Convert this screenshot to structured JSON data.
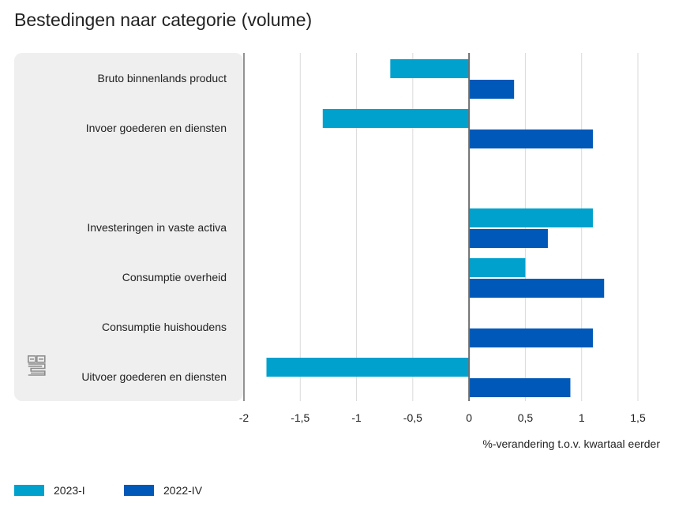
{
  "chart_data": {
    "type": "bar",
    "orientation": "horizontal",
    "title": "Bestedingen naar categorie (volume)",
    "xlabel": "%-verandering t.o.v. kwartaal eerder",
    "ylabel": "",
    "xlim": [
      -2,
      1.5
    ],
    "xticks": [
      -2,
      -1.5,
      -1,
      -0.5,
      0,
      0.5,
      1,
      1.5
    ],
    "xtick_labels": [
      "-2",
      "-1,5",
      "-1",
      "-0,5",
      "0",
      "0,5",
      "1",
      "1,5"
    ],
    "grid": true,
    "categories": [
      "Bruto binnenlands product",
      "Invoer goederen en diensten",
      "",
      "Investeringen in vaste activa",
      "Consumptie overheid",
      "Consumptie huishoudens",
      "Uitvoer goederen en diensten"
    ],
    "series": [
      {
        "name": "2023-I",
        "color": "#00a1cd",
        "values": [
          -0.7,
          -1.3,
          null,
          1.1,
          0.5,
          0.0,
          -1.8
        ]
      },
      {
        "name": "2022-IV",
        "color": "#0058b8",
        "values": [
          0.4,
          1.1,
          null,
          0.7,
          1.2,
          1.1,
          0.9
        ]
      }
    ],
    "legend_position": "bottom-left"
  },
  "logo": {
    "name": "cbs-logo-icon"
  }
}
